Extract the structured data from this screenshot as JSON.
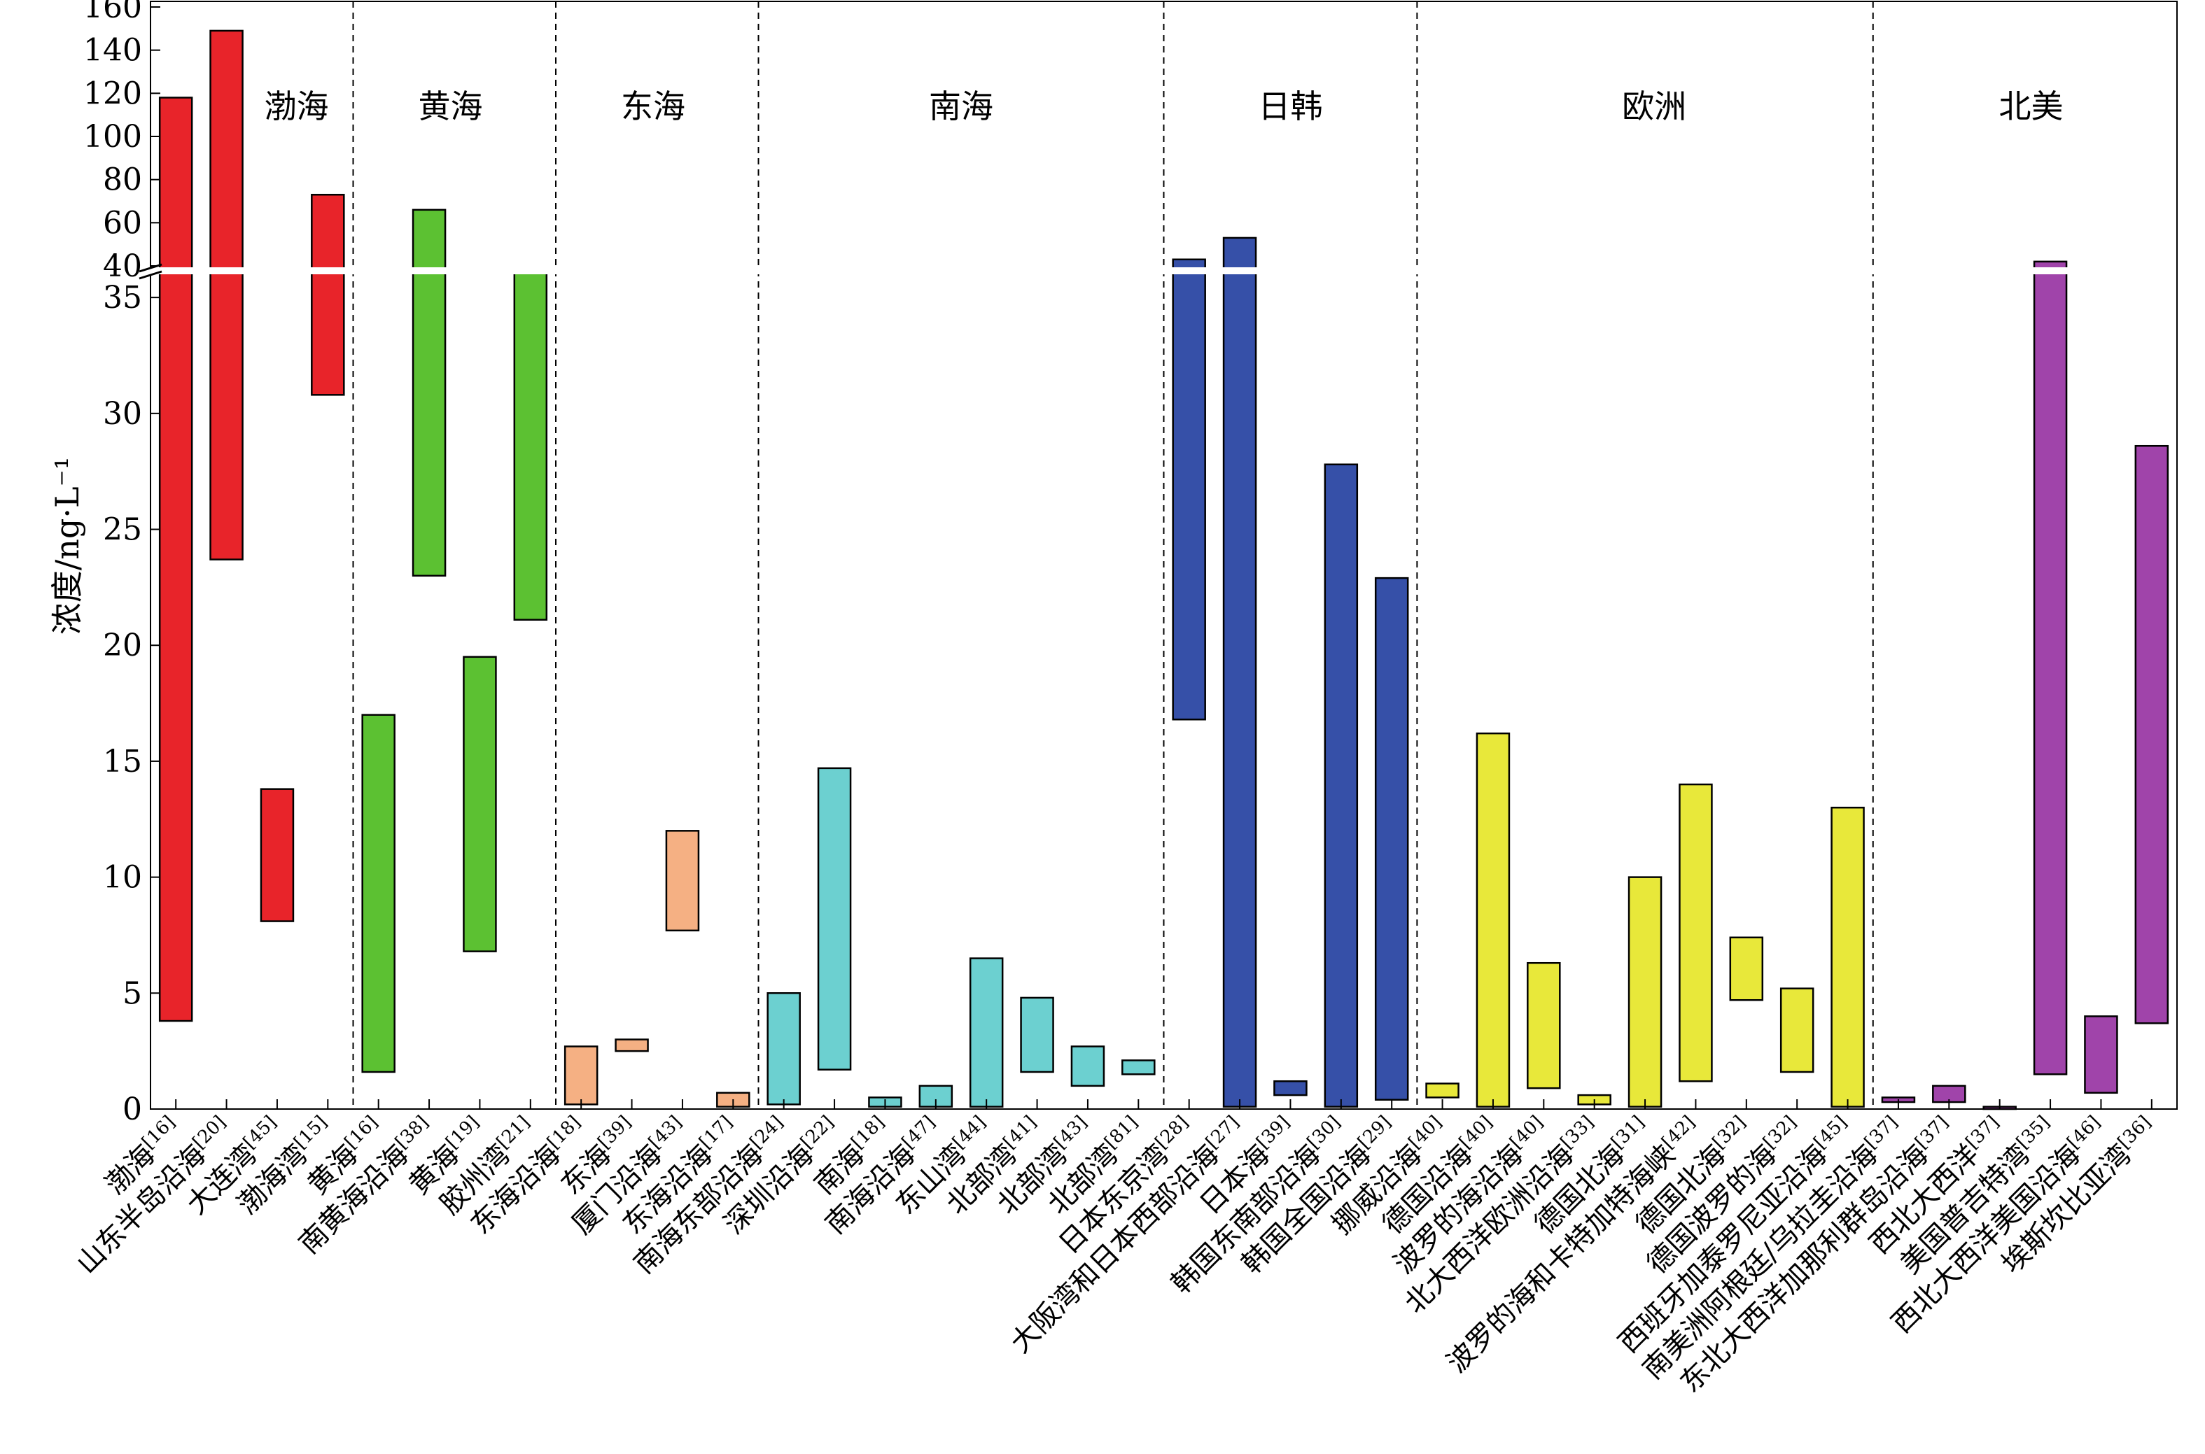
{
  "chart_data": {
    "type": "bar",
    "subtype": "floating-range",
    "ylabel": "浓度/ng·L⁻¹",
    "axis_break": {
      "lower_range": [
        0,
        36
      ],
      "upper_range": [
        40,
        160
      ]
    },
    "yticks_lower": [
      0,
      5,
      10,
      15,
      20,
      25,
      30,
      35
    ],
    "yticks_upper": [
      40,
      60,
      80,
      100,
      120,
      140,
      160
    ],
    "grid": false,
    "groups": [
      {
        "name": "渤海",
        "color": "#e8242a"
      },
      {
        "name": "黄海",
        "color": "#5cc132"
      },
      {
        "name": "东海",
        "color": "#f5b083"
      },
      {
        "name": "南海",
        "color": "#6cd0d0"
      },
      {
        "name": "日韩",
        "color": "#3650a8"
      },
      {
        "name": "欧洲",
        "color": "#e8e83a"
      },
      {
        "name": "北美",
        "color": "#a044aa"
      }
    ],
    "categories": [
      {
        "label": "渤海[16]",
        "group": 0,
        "low": 3.8,
        "high": 118
      },
      {
        "label": "山东半岛沿海[20]",
        "group": 0,
        "low": 23.7,
        "high": 149
      },
      {
        "label": "大连湾[45]",
        "group": 0,
        "low": 8.1,
        "high": 13.8
      },
      {
        "label": "渤海湾[15]",
        "group": 0,
        "low": 30.8,
        "high": 73
      },
      {
        "label": "黄海[16]",
        "group": 1,
        "low": 1.6,
        "high": 17
      },
      {
        "label": "南黄海沿海[38]",
        "group": 1,
        "low": 23,
        "high": 66
      },
      {
        "label": "黄海[19]",
        "group": 1,
        "low": 6.8,
        "high": 19.5
      },
      {
        "label": "胶州湾[21]",
        "group": 1,
        "low": 21.1,
        "high": 37
      },
      {
        "label": "东海沿海[18]",
        "group": 2,
        "low": 0.2,
        "high": 2.7
      },
      {
        "label": "东海[39]",
        "group": 2,
        "low": 2.5,
        "high": 3
      },
      {
        "label": "厦门沿海[43]",
        "group": 2,
        "low": 7.7,
        "high": 12
      },
      {
        "label": "东海沿海[17]",
        "group": 2,
        "low": 0.1,
        "high": 0.7
      },
      {
        "label": "南海东部沿海[24]",
        "group": 3,
        "low": 0.2,
        "high": 5
      },
      {
        "label": "深圳沿海[22]",
        "group": 3,
        "low": 1.7,
        "high": 14.7
      },
      {
        "label": "南海[18]",
        "group": 3,
        "low": 0.1,
        "high": 0.5
      },
      {
        "label": "南海沿海[47]",
        "group": 3,
        "low": 0.1,
        "high": 1
      },
      {
        "label": "东山湾[44]",
        "group": 3,
        "low": 0.1,
        "high": 6.5
      },
      {
        "label": "北部湾[41]",
        "group": 3,
        "low": 1.6,
        "high": 4.8
      },
      {
        "label": "北部湾[43]",
        "group": 3,
        "low": 1,
        "high": 2.7
      },
      {
        "label": "北部湾[81]",
        "group": 3,
        "low": 1.5,
        "high": 2.1
      },
      {
        "label": "日本东京湾[28]",
        "group": 4,
        "low": 16.8,
        "high": 43
      },
      {
        "label": "大阪湾和日本西部沿海[27]",
        "group": 4,
        "low": 0.1,
        "high": 53
      },
      {
        "label": "日本海[39]",
        "group": 4,
        "low": 0.6,
        "high": 1.2
      },
      {
        "label": "韩国东南部沿海[30]",
        "group": 4,
        "low": 0.1,
        "high": 27.8
      },
      {
        "label": "韩国全国沿海[29]",
        "group": 4,
        "low": 0.4,
        "high": 22.9
      },
      {
        "label": "挪威沿海[40]",
        "group": 5,
        "low": 0.5,
        "high": 1.1
      },
      {
        "label": "德国沿海[40]",
        "group": 5,
        "low": 0.1,
        "high": 16.2
      },
      {
        "label": "波罗的海沿海[40]",
        "group": 5,
        "low": 0.9,
        "high": 6.3
      },
      {
        "label": "北大西洋欧洲沿海[33]",
        "group": 5,
        "low": 0.2,
        "high": 0.6
      },
      {
        "label": "德国北海[31]",
        "group": 5,
        "low": 0.1,
        "high": 10
      },
      {
        "label": "波罗的海和卡特加特海峡[42]",
        "group": 5,
        "low": 1.2,
        "high": 14
      },
      {
        "label": "德国北海[32]",
        "group": 5,
        "low": 4.7,
        "high": 7.4
      },
      {
        "label": "德国波罗的海[32]",
        "group": 5,
        "low": 1.6,
        "high": 5.2
      },
      {
        "label": "西班牙加泰罗尼亚沿海[45]",
        "group": 5,
        "low": 0.1,
        "high": 13
      },
      {
        "label": "南美洲阿根廷/乌拉圭沿海[37]",
        "group": 6,
        "low": 0.3,
        "high": 0.5
      },
      {
        "label": "东北大西洋加那利群岛沿海[37]",
        "group": 6,
        "low": 0.3,
        "high": 1
      },
      {
        "label": "西北大西洋[37]",
        "group": 6,
        "low": 0,
        "high": 0.1
      },
      {
        "label": "美国普吉特湾[35]",
        "group": 6,
        "low": 1.5,
        "high": 42
      },
      {
        "label": "西北大西洋美国沿海[46]",
        "group": 6,
        "low": 0.7,
        "high": 4
      },
      {
        "label": "埃斯坎比亚湾[36]",
        "group": 6,
        "low": 3.7,
        "high": 28.6
      }
    ]
  }
}
